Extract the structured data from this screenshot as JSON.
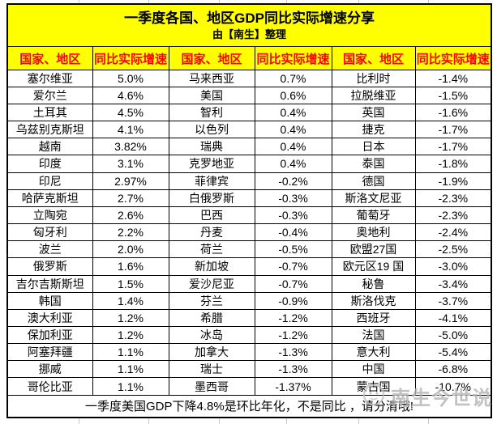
{
  "title": "一季度各国、地区GDP同比实际增速分享",
  "subtitle": "由【南生】整理",
  "footer_note": "一季度美国GDP下降4.8%是环比年化，不是同比 ，请分清哦!",
  "watermark_text": "南生今世说",
  "colors": {
    "header_bg": "#ffff00",
    "header_text": "#ff0000",
    "border": "#000000",
    "watermark": "#b3b3b3"
  },
  "chart_data": {
    "type": "table",
    "title": "一季度各国、地区GDP同比实际增速分享",
    "columns": [
      "国家、地区",
      "同比实际增速",
      "国家、地区",
      "同比实际增速",
      "国家、地区",
      "同比实际增速"
    ],
    "rows": [
      [
        "塞尔维亚",
        "5.0%",
        "马来西亚",
        "0.7%",
        "比利时",
        "-1.4%"
      ],
      [
        "爱尔兰",
        "4.6%",
        "美国",
        "0.6%",
        "拉脱维亚",
        "-1.5%"
      ],
      [
        "土耳其",
        "4.5%",
        "智利",
        "0.4%",
        "英国",
        "-1.6%"
      ],
      [
        "乌兹别克斯坦",
        "4.1%",
        "以色列",
        "0.4%",
        "捷克",
        "-1.7%"
      ],
      [
        "越南",
        "3.82%",
        "瑞典",
        "0.4%",
        "日本",
        "-1.7%"
      ],
      [
        "印度",
        "3.1%",
        "克罗地亚",
        "0.4%",
        "泰国",
        "-1.8%"
      ],
      [
        "印尼",
        "2.97%",
        "菲律宾",
        "-0.2%",
        "德国",
        "-1.9%"
      ],
      [
        "哈萨克斯坦",
        "2.7%",
        "白俄罗斯",
        "-0.3%",
        "斯洛文尼亚",
        "-2.3%"
      ],
      [
        "立陶宛",
        "2.6%",
        "巴西",
        "-0.3%",
        "葡萄牙",
        "-2.3%"
      ],
      [
        "匈牙利",
        "2.2%",
        "丹麦",
        "-0.4%",
        "奥地利",
        "-2.4%"
      ],
      [
        "波兰",
        "2.0%",
        "荷兰",
        "-0.5%",
        "欧盟27国",
        "-2.5%"
      ],
      [
        "俄罗斯",
        "1.6%",
        "新加坡",
        "-0.7%",
        "欧元区19 国",
        "-3.0%"
      ],
      [
        "吉尔吉斯斯坦",
        "1.5%",
        "爱沙尼亚",
        "-0.7%",
        "秘鲁",
        "-3.4%"
      ],
      [
        "韩国",
        "1.4%",
        "芬兰",
        "-0.9%",
        "斯洛伐克",
        "-3.7%"
      ],
      [
        "澳大利亚",
        "1.2%",
        "希腊",
        "-1.2%",
        "西班牙",
        "-4.1%"
      ],
      [
        "保加利亚",
        "1.2%",
        "冰岛",
        "-1.2%",
        "法国",
        "-5.0%"
      ],
      [
        "阿塞拜疆",
        "1.1%",
        "加拿大",
        "-1.3%",
        "意大利",
        "-5.4%"
      ],
      [
        "挪威",
        "1.1%",
        "瑞士",
        "-1.3%",
        "中国",
        "-6.8%"
      ],
      [
        "哥伦比亚",
        "1.1%",
        "墨西哥",
        "-1.37%",
        "蒙古国",
        "-10.7%"
      ]
    ]
  }
}
